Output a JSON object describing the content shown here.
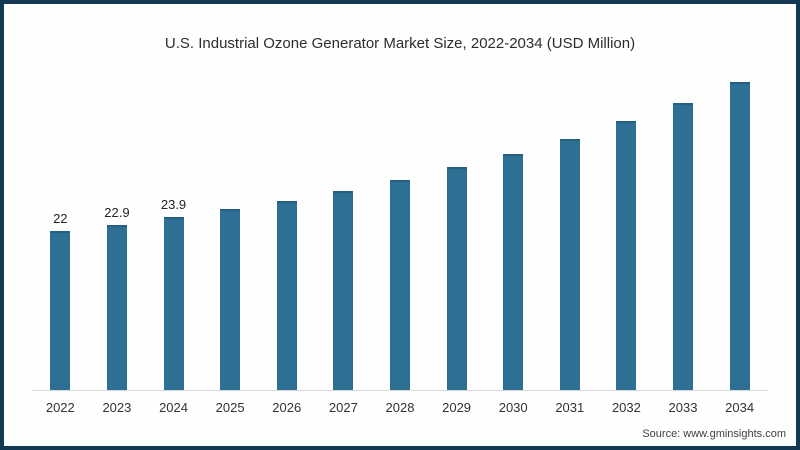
{
  "frame": {
    "source": "Source: www.gminsights.com"
  },
  "colors": {
    "bar": "#2e7093",
    "bar_top_edge": "#266080",
    "frame_border": "#113a52",
    "axis_line": "#d9d9d9",
    "text": "#2d2d2d"
  },
  "chart_data": {
    "type": "bar",
    "title": "U.S. Industrial Ozone Generator Market Size, 2022-2034 (USD Million)",
    "unit": "USD Million",
    "categories": [
      "2022",
      "2023",
      "2024",
      "2025",
      "2026",
      "2027",
      "2028",
      "2029",
      "2030",
      "2031",
      "2032",
      "2033",
      "2034"
    ],
    "values": [
      22,
      22.9,
      23.9,
      25,
      26.2,
      27.6,
      29.1,
      30.9,
      32.7,
      34.8,
      37.2,
      39.8,
      42.6
    ],
    "data_labels": [
      "22",
      "22.9",
      "23.9",
      "",
      "",
      "",
      "",
      "",
      "",
      "",
      "",
      "",
      ""
    ],
    "xlabel": "",
    "ylabel": "",
    "ylim": [
      0,
      45.7
    ],
    "grid": false,
    "legend": false
  }
}
